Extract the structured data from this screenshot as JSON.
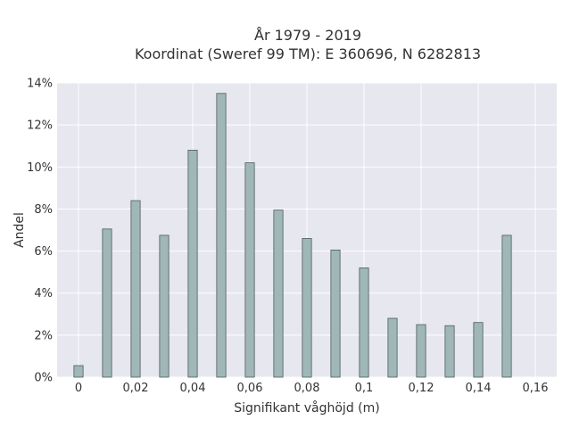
{
  "chart_data": {
    "type": "bar",
    "title_line1": "År 1979 - 2019",
    "title_line2": "Koordinat (Sweref 99 TM): E 360696, N 6282813",
    "xlabel": "Signifikant våghöjd (m)",
    "ylabel": "Andel",
    "xlim": [
      -0.0075,
      0.1675
    ],
    "ylim": [
      0,
      14
    ],
    "x": [
      0,
      0.01,
      0.02,
      0.03,
      0.04,
      0.05,
      0.06,
      0.07,
      0.08,
      0.09,
      0.1,
      0.11,
      0.12,
      0.13,
      0.14,
      0.15
    ],
    "values": [
      0.55,
      7.05,
      8.4,
      6.75,
      10.8,
      13.5,
      10.2,
      7.95,
      6.6,
      6.05,
      5.2,
      2.8,
      2.5,
      2.45,
      2.6,
      6.75
    ],
    "x_ticks": [
      0,
      0.02,
      0.04,
      0.06,
      0.08,
      0.1,
      0.12,
      0.14,
      0.16
    ],
    "x_tick_labels": [
      "0",
      "0,02",
      "0,04",
      "0,06",
      "0,08",
      "0,1",
      "0,12",
      "0,14",
      "0,16"
    ],
    "y_ticks": [
      0,
      2,
      4,
      6,
      8,
      10,
      12,
      14
    ],
    "y_tick_labels": [
      "0%",
      "2%",
      "4%",
      "6%",
      "8%",
      "10%",
      "12%",
      "14%"
    ],
    "grid": true,
    "colors": {
      "bar_fill": "#a0b7b8",
      "bar_stroke": "#4d5c5c",
      "plot_bg": "#e6e7ef",
      "grid": "#ffffff"
    }
  }
}
